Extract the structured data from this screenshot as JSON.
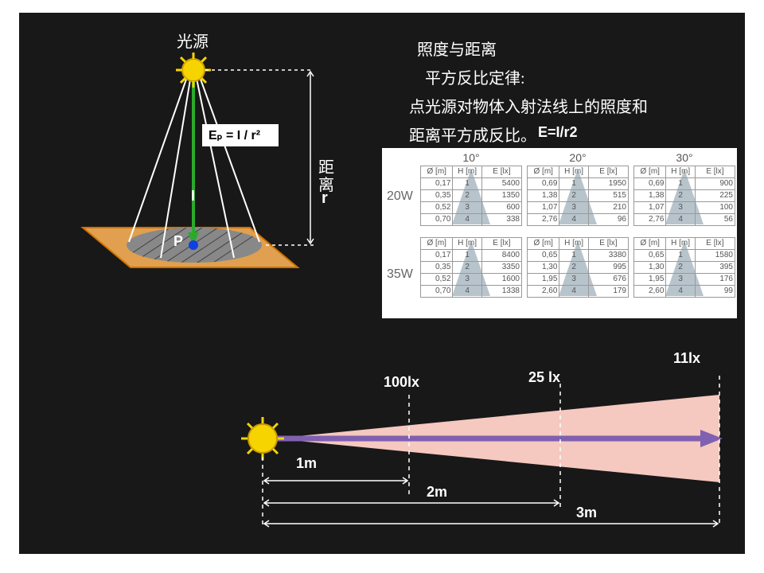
{
  "title_block": {
    "line1": "照度与距离",
    "line2": "平方反比定律:",
    "line3": "点光源对物体入射法线上的照度和",
    "line4": "距离平方成反比。",
    "formula_inline": "E=I/r2",
    "fontsize": 20,
    "color": "#ffffff"
  },
  "left_diagram": {
    "source_label": "光源",
    "distance_label_1": "距",
    "distance_label_2": "离",
    "distance_label_3": "r",
    "intensity_label": "I",
    "point_label": "P",
    "formula": "Eₚ  =  I / r²",
    "colors": {
      "sun": "#f6d400",
      "sun_outline": "#c99a00",
      "plane_fill": "#e0a050",
      "plane_edge": "#d07000",
      "ellipse_fill": "#888888",
      "ellipse_hatch": "#404040",
      "ray": "#ffffff",
      "arrow": "#2aaa2a",
      "guide": "#ffffff",
      "point": "#1040e0"
    }
  },
  "tables": {
    "bg": "#ffffff",
    "angles": [
      "10°",
      "20°",
      "30°"
    ],
    "row_labels": [
      "20W",
      "35W"
    ],
    "headers": [
      "Ø [m]",
      "H [m]",
      "E [lx]"
    ],
    "cone_fill": "#b8c4cc",
    "data_20W": {
      "10": {
        "d": [
          "0,17",
          "0,35",
          "0,52",
          "0,70"
        ],
        "h": [
          "1",
          "2",
          "3",
          "4"
        ],
        "e": [
          "5400",
          "1350",
          "600",
          "338"
        ]
      },
      "20": {
        "d": [
          "0,69",
          "1,38",
          "1,07",
          "2,76"
        ],
        "h": [
          "1",
          "2",
          "3",
          "4"
        ],
        "e": [
          "1950",
          "515",
          "210",
          "96"
        ]
      },
      "30": {
        "d": [
          "0,69",
          "1,38",
          "1,07",
          "2,76"
        ],
        "h": [
          "1",
          "2",
          "3",
          "4"
        ],
        "e": [
          "900",
          "225",
          "100",
          "56"
        ]
      }
    },
    "data_35W": {
      "10": {
        "d": [
          "0,17",
          "0,35",
          "0,52",
          "0,70"
        ],
        "h": [
          "1",
          "2",
          "3",
          "4"
        ],
        "e": [
          "8400",
          "3350",
          "1600",
          "1338"
        ]
      },
      "20": {
        "d": [
          "0,65",
          "1,30",
          "1,95",
          "2,60"
        ],
        "h": [
          "1",
          "2",
          "3",
          "4"
        ],
        "e": [
          "3380",
          "995",
          "676",
          "179"
        ]
      },
      "30": {
        "d": [
          "0,65",
          "1,30",
          "1,95",
          "2,60"
        ],
        "h": [
          "1",
          "2",
          "3",
          "4"
        ],
        "e": [
          "1580",
          "395",
          "176",
          "99"
        ]
      }
    }
  },
  "bottom_diagram": {
    "sun_color": "#f6d400",
    "cone_fill": "#f5c8c0",
    "arrow_color": "#8060b0",
    "guide_color": "#ffffff",
    "lux": [
      "100lx",
      "25 lx",
      "11lx"
    ],
    "dist": [
      "1m",
      "2m",
      "3m"
    ],
    "font_size": 18
  }
}
